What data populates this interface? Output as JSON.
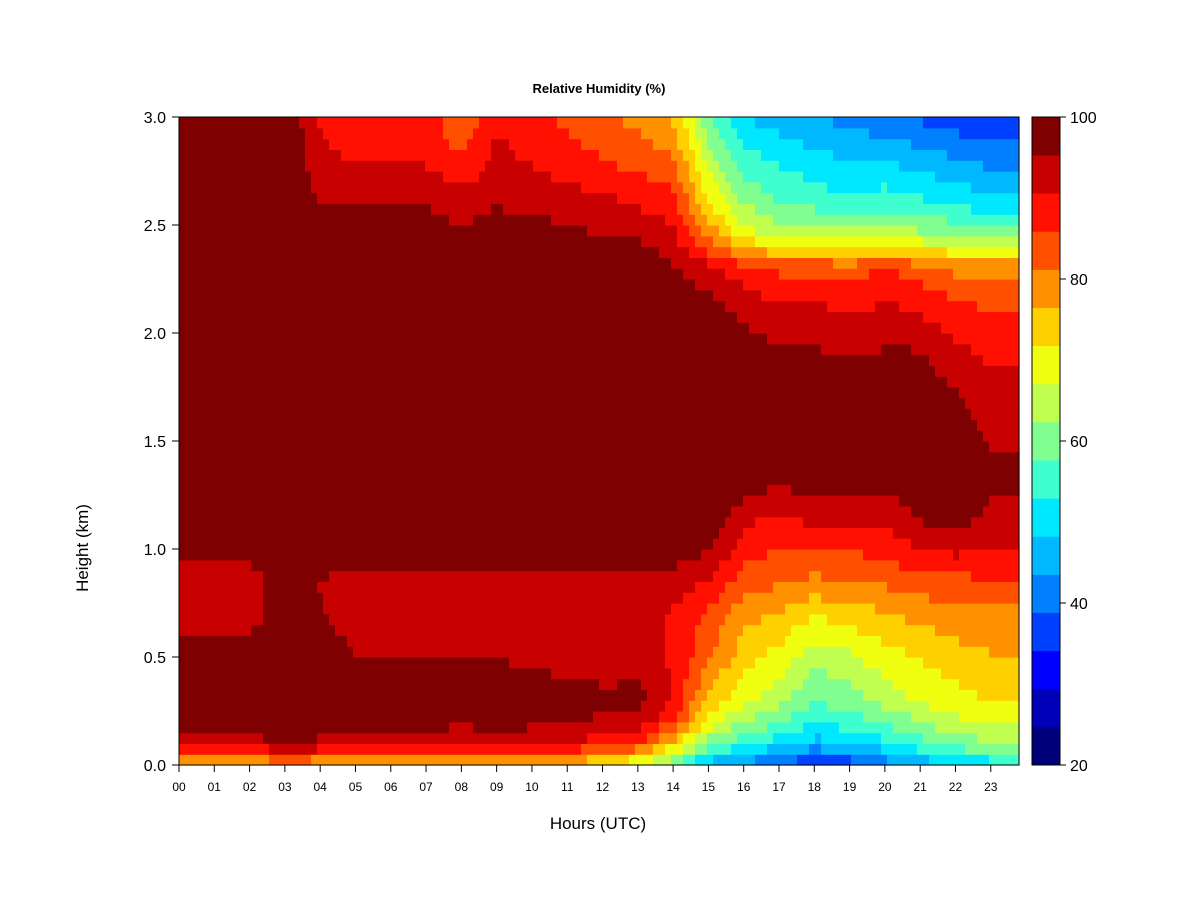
{
  "chart_data": {
    "type": "heatmap",
    "title": "Relative Humidity (%)",
    "xlabel": "Hours (UTC)",
    "ylabel": "Height (km)",
    "x_ticks": [
      "00",
      "01",
      "02",
      "03",
      "04",
      "05",
      "06",
      "07",
      "08",
      "09",
      "10",
      "11",
      "12",
      "13",
      "14",
      "15",
      "16",
      "17",
      "18",
      "19",
      "20",
      "21",
      "22",
      "23"
    ],
    "y_ticks": [
      "0.0",
      "0.5",
      "1.0",
      "1.5",
      "2.0",
      "2.5",
      "3.0"
    ],
    "xlim": [
      0,
      23.8
    ],
    "ylim": [
      0.0,
      3.0
    ],
    "colorbar": {
      "label_values": [
        "20",
        "40",
        "60",
        "80",
        "100"
      ],
      "range": [
        20,
        100
      ],
      "step": 5,
      "colors": [
        "#00007a",
        "#0000b8",
        "#0000ff",
        "#0040ff",
        "#0080ff",
        "#00b8ff",
        "#00e8ff",
        "#40ffcf",
        "#80ff90",
        "#c0ff50",
        "#f0ff10",
        "#ffd000",
        "#ff9000",
        "#ff5000",
        "#ff1000",
        "#c80000",
        "#7f0000"
      ]
    },
    "heights_km": [
      0.0,
      0.05,
      0.1,
      0.2,
      0.3,
      0.5,
      0.7,
      0.85,
      1.0,
      1.15,
      1.3,
      1.5,
      1.7,
      1.9,
      2.1,
      2.3,
      2.45,
      2.6,
      2.8,
      3.0
    ],
    "series": [
      {
        "hour": 0,
        "rh": [
          72,
          85,
          92,
          99,
          100,
          100,
          92,
          92,
          98,
          100,
          100,
          100,
          100,
          100,
          100,
          100,
          100,
          100,
          100,
          100
        ]
      },
      {
        "hour": 2,
        "rh": [
          74,
          86,
          93,
          99,
          100,
          100,
          92,
          92,
          98,
          100,
          100,
          100,
          100,
          100,
          100,
          100,
          100,
          100,
          100,
          100
        ]
      },
      {
        "hour": 3,
        "rh": [
          76,
          88,
          95,
          100,
          100,
          100,
          100,
          100,
          100,
          100,
          100,
          100,
          100,
          100,
          100,
          100,
          100,
          100,
          100,
          100
        ]
      },
      {
        "hour": 4,
        "rh": [
          75,
          87,
          94,
          99,
          100,
          100,
          96,
          95,
          100,
          100,
          100,
          100,
          100,
          100,
          100,
          100,
          98,
          95,
          92,
          90
        ]
      },
      {
        "hour": 5,
        "rh": [
          74,
          86,
          93,
          98,
          100,
          95,
          92,
          93,
          98,
          100,
          100,
          100,
          100,
          100,
          100,
          100,
          98,
          95,
          90,
          88
        ]
      },
      {
        "hour": 7,
        "rh": [
          73,
          85,
          93,
          97,
          100,
          95,
          92,
          92,
          99,
          100,
          100,
          100,
          100,
          100,
          100,
          100,
          98,
          95,
          90,
          88
        ]
      },
      {
        "hour": 8,
        "rh": [
          72,
          84,
          92,
          96,
          100,
          95,
          91,
          92,
          99,
          100,
          100,
          100,
          100,
          100,
          100,
          100,
          96,
          93,
          86,
          82
        ]
      },
      {
        "hour": 9,
        "rh": [
          73,
          85,
          92,
          97,
          100,
          95,
          92,
          93,
          99,
          100,
          100,
          100,
          100,
          100,
          100,
          100,
          98,
          95,
          92,
          90
        ]
      },
      {
        "hour": 11,
        "rh": [
          72,
          84,
          91,
          96,
          98,
          93,
          92,
          94,
          99,
          100,
          100,
          100,
          100,
          100,
          100,
          100,
          97,
          93,
          88,
          85
        ]
      },
      {
        "hour": 12,
        "rh": [
          70,
          80,
          88,
          94,
          97,
          92,
          91,
          93,
          98,
          100,
          100,
          100,
          100,
          100,
          100,
          100,
          95,
          92,
          86,
          82
        ]
      },
      {
        "hour": 13,
        "rh": [
          66,
          76,
          86,
          94,
          97,
          93,
          92,
          94,
          99,
          100,
          100,
          100,
          100,
          100,
          100,
          100,
          95,
          90,
          84,
          80
        ]
      },
      {
        "hour": 14,
        "rh": [
          58,
          66,
          74,
          86,
          90,
          90,
          90,
          93,
          98,
          100,
          100,
          100,
          100,
          100,
          100,
          96,
          92,
          88,
          82,
          76
        ]
      },
      {
        "hour": 15,
        "rh": [
          45,
          52,
          60,
          70,
          75,
          82,
          85,
          90,
          96,
          100,
          100,
          100,
          100,
          100,
          98,
          92,
          80,
          72,
          65,
          58
        ]
      },
      {
        "hour": 16,
        "rh": [
          42,
          48,
          54,
          62,
          68,
          74,
          78,
          84,
          88,
          92,
          98,
          100,
          100,
          98,
          94,
          88,
          70,
          62,
          55,
          48
        ]
      },
      {
        "hour": 17,
        "rh": [
          38,
          44,
          50,
          58,
          64,
          70,
          76,
          82,
          86,
          90,
          95,
          100,
          100,
          96,
          92,
          85,
          66,
          58,
          52,
          46
        ]
      },
      {
        "hour": 18,
        "rh": [
          33,
          40,
          46,
          54,
          58,
          64,
          72,
          80,
          86,
          92,
          98,
          100,
          100,
          96,
          92,
          85,
          66,
          56,
          50,
          44
        ]
      },
      {
        "hour": 19,
        "rh": [
          35,
          42,
          48,
          55,
          60,
          66,
          74,
          82,
          86,
          92,
          97,
          100,
          98,
          95,
          90,
          84,
          64,
          54,
          48,
          42
        ]
      },
      {
        "hour": 20,
        "rh": [
          40,
          46,
          52,
          58,
          64,
          70,
          76,
          82,
          88,
          92,
          96,
          98,
          98,
          96,
          92,
          86,
          66,
          56,
          48,
          40
        ]
      },
      {
        "hour": 21,
        "rh": [
          44,
          50,
          56,
          62,
          68,
          72,
          78,
          84,
          90,
          96,
          100,
          100,
          98,
          96,
          90,
          84,
          64,
          54,
          46,
          38
        ]
      },
      {
        "hour": 22,
        "rh": [
          48,
          54,
          60,
          66,
          70,
          74,
          80,
          84,
          92,
          98,
          100,
          100,
          96,
          92,
          88,
          80,
          62,
          52,
          44,
          36
        ]
      },
      {
        "hour": 23,
        "rh": [
          50,
          56,
          62,
          66,
          72,
          76,
          80,
          86,
          90,
          94,
          96,
          95,
          92,
          90,
          86,
          80,
          60,
          50,
          42,
          34
        ]
      },
      {
        "hour": 23.8,
        "rh": [
          50,
          56,
          62,
          66,
          72,
          76,
          80,
          86,
          90,
          94,
          96,
          95,
          92,
          90,
          86,
          80,
          60,
          50,
          42,
          34
        ]
      }
    ]
  }
}
